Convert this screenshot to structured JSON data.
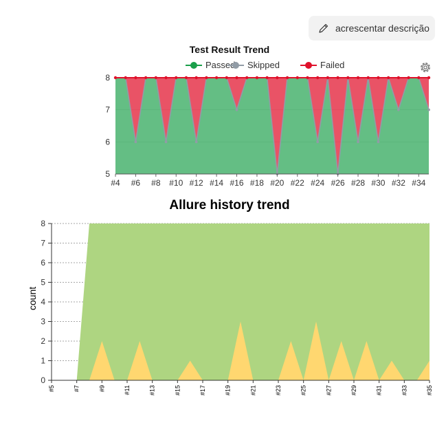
{
  "toolbar": {
    "description_button_label": "acrescentar descrição",
    "pencil_icon": "pencil-icon"
  },
  "settings_icon": "gear-icon",
  "chart_data": [
    {
      "type": "area",
      "title": "Test Result Trend",
      "legend": {
        "position": "top",
        "entries": [
          "Passed",
          "Skipped",
          "Failed"
        ]
      },
      "colors": {
        "Passed": "#1a9f4a",
        "Skipped": "#919ca6",
        "Failed": "#e0112b"
      },
      "x": [
        "#4",
        "#5",
        "#6",
        "#7",
        "#8",
        "#9",
        "#10",
        "#11",
        "#12",
        "#13",
        "#14",
        "#15",
        "#16",
        "#17",
        "#18",
        "#19",
        "#20",
        "#21",
        "#22",
        "#23",
        "#24",
        "#25",
        "#26",
        "#27",
        "#28",
        "#29",
        "#30",
        "#31",
        "#32",
        "#33",
        "#34",
        "#35"
      ],
      "x_tick_labels": [
        "#4",
        "#6",
        "#8",
        "#10",
        "#12",
        "#14",
        "#16",
        "#18",
        "#20",
        "#22",
        "#24",
        "#26",
        "#28",
        "#30",
        "#32",
        "#34"
      ],
      "series": [
        {
          "name": "Passed",
          "values": [
            8,
            8,
            6,
            8,
            8,
            6,
            8,
            8,
            6,
            8,
            8,
            8,
            7,
            8,
            8,
            8,
            5,
            8,
            8,
            8,
            6,
            8,
            5,
            8,
            6,
            8,
            6,
            8,
            7,
            8,
            8,
            7
          ]
        },
        {
          "name": "Skipped",
          "values": [
            0,
            0,
            0,
            0,
            0,
            0,
            0,
            0,
            0,
            0,
            0,
            0,
            0,
            0,
            0,
            0,
            0,
            0,
            0,
            0,
            0,
            0,
            0,
            0,
            0,
            0,
            0,
            0,
            0,
            0,
            0,
            0
          ]
        },
        {
          "name": "Failed",
          "values": [
            0,
            0,
            2,
            0,
            0,
            2,
            0,
            0,
            2,
            0,
            0,
            0,
            1,
            0,
            0,
            0,
            3,
            0,
            0,
            0,
            2,
            0,
            3,
            0,
            2,
            0,
            2,
            0,
            1,
            0,
            0,
            1
          ]
        }
      ],
      "y_ticks": [
        5,
        6,
        7,
        8
      ],
      "ylim": [
        5,
        8
      ],
      "grid": true
    },
    {
      "type": "area",
      "title": "Allure history trend",
      "ylabel": "count",
      "colors": {
        "passed": "#aed581",
        "failed": "#ffd770"
      },
      "x": [
        "#5",
        "#6",
        "#7",
        "#8",
        "#9",
        "#10",
        "#11",
        "#12",
        "#13",
        "#14",
        "#15",
        "#16",
        "#17",
        "#18",
        "#19",
        "#20",
        "#21",
        "#22",
        "#23",
        "#24",
        "#25",
        "#26",
        "#27",
        "#28",
        "#29",
        "#30",
        "#31",
        "#32",
        "#33",
        "#34",
        "#35"
      ],
      "x_tick_labels": [
        "#5",
        "#7",
        "#9",
        "#11",
        "#13",
        "#15",
        "#17",
        "#19",
        "#21",
        "#23",
        "#25",
        "#27",
        "#29",
        "#31",
        "#33",
        "#35"
      ],
      "series": [
        {
          "name": "passed",
          "values": [
            0,
            0,
            0,
            8,
            6,
            8,
            8,
            6,
            8,
            8,
            8,
            7,
            8,
            8,
            8,
            5,
            8,
            8,
            8,
            6,
            8,
            5,
            8,
            6,
            8,
            6,
            8,
            7,
            8,
            8,
            7
          ]
        },
        {
          "name": "failed",
          "values": [
            0,
            0,
            0,
            0,
            2,
            0,
            0,
            2,
            0,
            0,
            0,
            1,
            0,
            0,
            0,
            3,
            0,
            0,
            0,
            2,
            0,
            3,
            0,
            2,
            0,
            2,
            0,
            1,
            0,
            0,
            1
          ]
        }
      ],
      "y_ticks": [
        0,
        1,
        2,
        3,
        4,
        5,
        6,
        7,
        8
      ],
      "ylim": [
        0,
        8
      ],
      "grid": true
    }
  ]
}
